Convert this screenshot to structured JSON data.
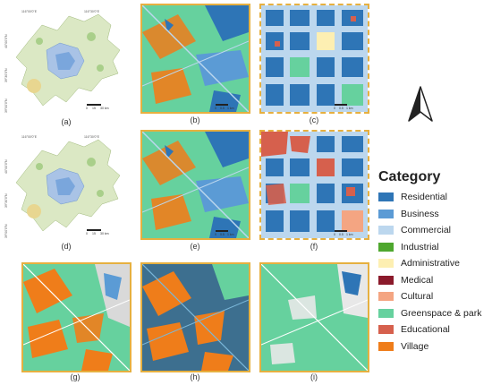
{
  "panels": [
    {
      "label": "(a)",
      "coords_top": [
        "116°00'0\"E",
        "116°30'0\"E"
      ],
      "coords_left": [
        "40°00'0\"N",
        "39°30'0\"N",
        "39°00'0\"N"
      ],
      "scale": [
        "0",
        "15",
        "30 km"
      ]
    },
    {
      "label": "(b)",
      "scale": [
        "0",
        "0.5",
        "1 km"
      ]
    },
    {
      "label": "(c)",
      "scale": [
        "0",
        "0.5",
        "1 km"
      ]
    },
    {
      "label": "(d)",
      "coords_top": [
        "116°00'0\"E",
        "116°30'0\"E"
      ],
      "coords_left": [
        "40°00'0\"N",
        "39°30'0\"N",
        "39°00'0\"N"
      ],
      "scale": [
        "0",
        "15",
        "30 km"
      ]
    },
    {
      "label": "(e)",
      "scale": [
        "0",
        "0.5",
        "1 km"
      ]
    },
    {
      "label": "(f)",
      "scale": [
        "0",
        "0.5",
        "1 km"
      ]
    },
    {
      "label": "(g)"
    },
    {
      "label": "(h)"
    },
    {
      "label": "(i)"
    }
  ],
  "legend": {
    "title": "Category",
    "items": [
      {
        "label": "Residential",
        "color": "#2e75b6"
      },
      {
        "label": "Business",
        "color": "#5b9bd5"
      },
      {
        "label": "Commercial",
        "color": "#bcd7ee"
      },
      {
        "label": "Industrial",
        "color": "#4ea72e"
      },
      {
        "label": "Administrative",
        "color": "#fdefb2"
      },
      {
        "label": "Medical",
        "color": "#8b1a2b"
      },
      {
        "label": "Cultural",
        "color": "#f4a582"
      },
      {
        "label": "Greenspace & park",
        "color": "#66d19e"
      },
      {
        "label": "Educational",
        "color": "#d6604d"
      },
      {
        "label": "Village",
        "color": "#ef7d1a"
      }
    ]
  }
}
